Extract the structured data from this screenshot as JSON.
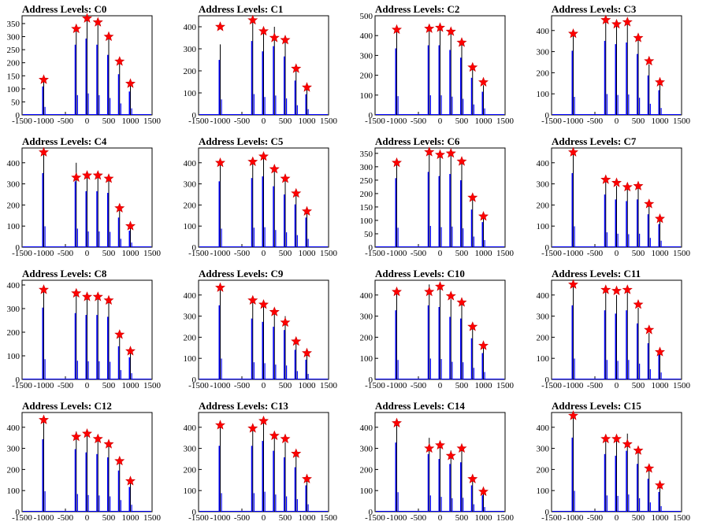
{
  "chart_data": [
    {
      "type": "histogram",
      "title": "Address Levels: C0",
      "xlim": [
        -1500,
        1500
      ],
      "ylim": [
        0,
        380
      ],
      "yticks": [
        0,
        50,
        100,
        150,
        200,
        250,
        300,
        350
      ],
      "xticks": [
        -1500,
        -1000,
        -500,
        0,
        500,
        1000,
        1500
      ],
      "peaks": [
        [
          -1000,
          140
        ],
        [
          -250,
          345
        ],
        [
          0,
          375
        ],
        [
          250,
          345
        ],
        [
          500,
          295
        ],
        [
          750,
          200
        ],
        [
          1000,
          115
        ]
      ],
      "markers": [
        [
          -1000,
          135
        ],
        [
          -250,
          330
        ],
        [
          0,
          370
        ],
        [
          250,
          355
        ],
        [
          500,
          300
        ],
        [
          750,
          205
        ],
        [
          1000,
          120
        ]
      ]
    },
    {
      "type": "histogram",
      "title": "Address Levels: C1",
      "xlim": [
        -1500,
        1500
      ],
      "ylim": [
        0,
        450
      ],
      "yticks": [
        0,
        100,
        200,
        300,
        400
      ],
      "xticks": [
        -1500,
        -1000,
        -500,
        0,
        500,
        1000,
        1500
      ],
      "peaks": [
        [
          -1000,
          320
        ],
        [
          -250,
          430
        ],
        [
          0,
          370
        ],
        [
          250,
          400
        ],
        [
          500,
          340
        ],
        [
          750,
          200
        ],
        [
          1000,
          120
        ]
      ],
      "markers": [
        [
          -1000,
          400
        ],
        [
          -250,
          430
        ],
        [
          0,
          380
        ],
        [
          250,
          350
        ],
        [
          500,
          340
        ],
        [
          750,
          210
        ],
        [
          1000,
          125
        ]
      ]
    },
    {
      "type": "histogram",
      "title": "Address Levels: C2",
      "xlim": [
        -1500,
        1500
      ],
      "ylim": [
        0,
        500
      ],
      "yticks": [
        0,
        100,
        200,
        300,
        400,
        500
      ],
      "xticks": [
        -1500,
        -1000,
        -500,
        0,
        500,
        1000,
        1500
      ],
      "peaks": [
        [
          -1000,
          430
        ],
        [
          -250,
          450
        ],
        [
          0,
          450
        ],
        [
          250,
          420
        ],
        [
          500,
          370
        ],
        [
          750,
          240
        ],
        [
          1000,
          150
        ]
      ],
      "markers": [
        [
          -1000,
          430
        ],
        [
          -250,
          435
        ],
        [
          0,
          440
        ],
        [
          250,
          420
        ],
        [
          500,
          365
        ],
        [
          750,
          240
        ],
        [
          1000,
          165
        ]
      ]
    },
    {
      "type": "histogram",
      "title": "Address Levels: C3",
      "xlim": [
        -1500,
        1500
      ],
      "ylim": [
        0,
        470
      ],
      "yticks": [
        0,
        100,
        200,
        300,
        400
      ],
      "xticks": [
        -1500,
        -1000,
        -500,
        0,
        500,
        1000,
        1500
      ],
      "peaks": [
        [
          -1000,
          390
        ],
        [
          -250,
          450
        ],
        [
          0,
          430
        ],
        [
          250,
          440
        ],
        [
          500,
          370
        ],
        [
          750,
          240
        ],
        [
          1000,
          150
        ]
      ],
      "markers": [
        [
          -1000,
          385
        ],
        [
          -250,
          450
        ],
        [
          0,
          430
        ],
        [
          250,
          440
        ],
        [
          500,
          365
        ],
        [
          750,
          255
        ],
        [
          1000,
          155
        ]
      ]
    },
    {
      "type": "histogram",
      "title": "Address Levels: C4",
      "xlim": [
        -1500,
        1500
      ],
      "ylim": [
        0,
        470
      ],
      "yticks": [
        0,
        100,
        200,
        300,
        400
      ],
      "xticks": [
        -1500,
        -1000,
        -500,
        0,
        500,
        1000,
        1500
      ],
      "peaks": [
        [
          -1000,
          450
        ],
        [
          -250,
          400
        ],
        [
          0,
          340
        ],
        [
          250,
          340
        ],
        [
          500,
          330
        ],
        [
          750,
          180
        ],
        [
          1000,
          100
        ]
      ],
      "markers": [
        [
          -1000,
          450
        ],
        [
          -250,
          330
        ],
        [
          0,
          340
        ],
        [
          250,
          340
        ],
        [
          500,
          325
        ],
        [
          750,
          185
        ],
        [
          1000,
          100
        ]
      ]
    },
    {
      "type": "histogram",
      "title": "Address Levels: C5",
      "xlim": [
        -1500,
        1500
      ],
      "ylim": [
        0,
        470
      ],
      "yticks": [
        0,
        100,
        200,
        300,
        400
      ],
      "xticks": [
        -1500,
        -1000,
        -500,
        0,
        500,
        1000,
        1500
      ],
      "peaks": [
        [
          -1000,
          400
        ],
        [
          -250,
          420
        ],
        [
          0,
          430
        ],
        [
          250,
          370
        ],
        [
          500,
          320
        ],
        [
          750,
          260
        ],
        [
          1000,
          180
        ]
      ],
      "markers": [
        [
          -1000,
          400
        ],
        [
          -250,
          405
        ],
        [
          0,
          430
        ],
        [
          250,
          370
        ],
        [
          500,
          325
        ],
        [
          750,
          255
        ],
        [
          1000,
          170
        ]
      ]
    },
    {
      "type": "histogram",
      "title": "Address Levels: C6",
      "xlim": [
        -1500,
        1500
      ],
      "ylim": [
        0,
        370
      ],
      "yticks": [
        0,
        50,
        100,
        150,
        200,
        250,
        300,
        350
      ],
      "xticks": [
        -1500,
        -1000,
        -500,
        0,
        500,
        1000,
        1500
      ],
      "peaks": [
        [
          -1000,
          330
        ],
        [
          -250,
          360
        ],
        [
          0,
          340
        ],
        [
          250,
          350
        ],
        [
          500,
          320
        ],
        [
          750,
          180
        ],
        [
          1000,
          120
        ]
      ],
      "markers": [
        [
          -1000,
          315
        ],
        [
          -250,
          355
        ],
        [
          0,
          345
        ],
        [
          250,
          350
        ],
        [
          500,
          320
        ],
        [
          750,
          185
        ],
        [
          1000,
          115
        ]
      ]
    },
    {
      "type": "histogram",
      "title": "Address Levels: C7",
      "xlim": [
        -1500,
        1500
      ],
      "ylim": [
        0,
        470
      ],
      "yticks": [
        0,
        100,
        200,
        300,
        400
      ],
      "xticks": [
        -1500,
        -1000,
        -500,
        0,
        500,
        1000,
        1500
      ],
      "peaks": [
        [
          -1000,
          450
        ],
        [
          -250,
          320
        ],
        [
          0,
          290
        ],
        [
          250,
          280
        ],
        [
          500,
          290
        ],
        [
          750,
          200
        ],
        [
          1000,
          140
        ]
      ],
      "markers": [
        [
          -1000,
          450
        ],
        [
          -250,
          320
        ],
        [
          0,
          305
        ],
        [
          250,
          285
        ],
        [
          500,
          290
        ],
        [
          750,
          205
        ],
        [
          1000,
          135
        ]
      ]
    },
    {
      "type": "histogram",
      "title": "Address Levels: C8",
      "xlim": [
        -1500,
        1500
      ],
      "ylim": [
        0,
        420
      ],
      "yticks": [
        0,
        100,
        200,
        300,
        400
      ],
      "xticks": [
        -1500,
        -1000,
        -500,
        0,
        500,
        1000,
        1500
      ],
      "peaks": [
        [
          -1000,
          390
        ],
        [
          -250,
          360
        ],
        [
          0,
          350
        ],
        [
          250,
          350
        ],
        [
          500,
          340
        ],
        [
          750,
          180
        ],
        [
          1000,
          120
        ]
      ],
      "markers": [
        [
          -1000,
          380
        ],
        [
          -250,
          365
        ],
        [
          0,
          350
        ],
        [
          250,
          350
        ],
        [
          500,
          335
        ],
        [
          750,
          190
        ],
        [
          1000,
          120
        ]
      ]
    },
    {
      "type": "histogram",
      "title": "Address Levels: C9",
      "xlim": [
        -1500,
        1500
      ],
      "ylim": [
        0,
        470
      ],
      "yticks": [
        0,
        100,
        200,
        300,
        400
      ],
      "xticks": [
        -1500,
        -1000,
        -500,
        0,
        500,
        1000,
        1500
      ],
      "peaks": [
        [
          -1000,
          450
        ],
        [
          -250,
          370
        ],
        [
          0,
          350
        ],
        [
          250,
          320
        ],
        [
          500,
          300
        ],
        [
          750,
          180
        ],
        [
          1000,
          120
        ]
      ],
      "markers": [
        [
          -1000,
          435
        ],
        [
          -250,
          375
        ],
        [
          0,
          355
        ],
        [
          250,
          320
        ],
        [
          500,
          270
        ],
        [
          750,
          180
        ],
        [
          1000,
          125
        ]
      ]
    },
    {
      "type": "histogram",
      "title": "Address Levels: C10",
      "xlim": [
        -1500,
        1500
      ],
      "ylim": [
        0,
        470
      ],
      "yticks": [
        0,
        100,
        200,
        300,
        400
      ],
      "xticks": [
        -1500,
        -1000,
        -500,
        0,
        500,
        1000,
        1500
      ],
      "peaks": [
        [
          -1000,
          420
        ],
        [
          -250,
          450
        ],
        [
          0,
          440
        ],
        [
          250,
          380
        ],
        [
          500,
          370
        ],
        [
          750,
          250
        ],
        [
          1000,
          160
        ]
      ],
      "markers": [
        [
          -1000,
          415
        ],
        [
          -250,
          415
        ],
        [
          0,
          440
        ],
        [
          250,
          395
        ],
        [
          500,
          365
        ],
        [
          750,
          250
        ],
        [
          1000,
          160
        ]
      ]
    },
    {
      "type": "histogram",
      "title": "Address Levels: C11",
      "xlim": [
        -1500,
        1500
      ],
      "ylim": [
        0,
        470
      ],
      "yticks": [
        0,
        100,
        200,
        300,
        400
      ],
      "xticks": [
        -1500,
        -1000,
        -500,
        0,
        500,
        1000,
        1500
      ],
      "peaks": [
        [
          -1000,
          450
        ],
        [
          -250,
          420
        ],
        [
          0,
          400
        ],
        [
          250,
          420
        ],
        [
          500,
          340
        ],
        [
          750,
          220
        ],
        [
          1000,
          150
        ]
      ],
      "markers": [
        [
          -1000,
          450
        ],
        [
          -250,
          425
        ],
        [
          0,
          420
        ],
        [
          250,
          425
        ],
        [
          500,
          355
        ],
        [
          750,
          235
        ],
        [
          1000,
          130
        ]
      ]
    },
    {
      "type": "histogram",
      "title": "Address Levels: C12",
      "xlim": [
        -1500,
        1500
      ],
      "ylim": [
        0,
        470
      ],
      "yticks": [
        0,
        100,
        200,
        300,
        400
      ],
      "xticks": [
        -1500,
        -1000,
        -500,
        0,
        500,
        1000,
        1500
      ],
      "peaks": [
        [
          -1000,
          440
        ],
        [
          -250,
          380
        ],
        [
          0,
          360
        ],
        [
          250,
          350
        ],
        [
          500,
          330
        ],
        [
          750,
          250
        ],
        [
          1000,
          150
        ]
      ],
      "markers": [
        [
          -1000,
          435
        ],
        [
          -250,
          355
        ],
        [
          0,
          370
        ],
        [
          250,
          345
        ],
        [
          500,
          320
        ],
        [
          750,
          240
        ],
        [
          1000,
          145
        ]
      ]
    },
    {
      "type": "histogram",
      "title": "Address Levels: C13",
      "xlim": [
        -1500,
        1500
      ],
      "ylim": [
        0,
        470
      ],
      "yticks": [
        0,
        100,
        200,
        300,
        400
      ],
      "xticks": [
        -1500,
        -1000,
        -500,
        0,
        500,
        1000,
        1500
      ],
      "peaks": [
        [
          -1000,
          400
        ],
        [
          -250,
          400
        ],
        [
          0,
          430
        ],
        [
          250,
          370
        ],
        [
          500,
          330
        ],
        [
          750,
          270
        ],
        [
          1000,
          160
        ]
      ],
      "markers": [
        [
          -1000,
          410
        ],
        [
          -250,
          395
        ],
        [
          0,
          430
        ],
        [
          250,
          360
        ],
        [
          500,
          345
        ],
        [
          750,
          275
        ],
        [
          1000,
          155
        ]
      ]
    },
    {
      "type": "histogram",
      "title": "Address Levels: C14",
      "xlim": [
        -1500,
        1500
      ],
      "ylim": [
        0,
        470
      ],
      "yticks": [
        0,
        100,
        200,
        300,
        400
      ],
      "xticks": [
        -1500,
        -1000,
        -500,
        0,
        500,
        1000,
        1500
      ],
      "peaks": [
        [
          -1000,
          420
        ],
        [
          -250,
          350
        ],
        [
          0,
          320
        ],
        [
          250,
          290
        ],
        [
          500,
          300
        ],
        [
          750,
          160
        ],
        [
          1000,
          100
        ]
      ],
      "markers": [
        [
          -1000,
          420
        ],
        [
          -250,
          300
        ],
        [
          0,
          315
        ],
        [
          250,
          265
        ],
        [
          500,
          300
        ],
        [
          750,
          155
        ],
        [
          1000,
          95
        ]
      ]
    },
    {
      "type": "histogram",
      "title": "Address Levels: C15",
      "xlim": [
        -1500,
        1500
      ],
      "ylim": [
        0,
        470
      ],
      "yticks": [
        0,
        100,
        200,
        300,
        400
      ],
      "xticks": [
        -1500,
        -1000,
        -500,
        0,
        500,
        1000,
        1500
      ],
      "peaks": [
        [
          -1000,
          450
        ],
        [
          -250,
          350
        ],
        [
          0,
          340
        ],
        [
          250,
          370
        ],
        [
          500,
          290
        ],
        [
          750,
          200
        ],
        [
          1000,
          120
        ]
      ],
      "markers": [
        [
          -1000,
          455
        ],
        [
          -250,
          345
        ],
        [
          0,
          345
        ],
        [
          250,
          320
        ],
        [
          500,
          290
        ],
        [
          750,
          205
        ],
        [
          1000,
          125
        ]
      ]
    }
  ],
  "colors": {
    "line": "#0000ff",
    "spike": "#000000",
    "marker_fill": "#ff0000",
    "marker_stroke": "#cc0000",
    "axis": "#000000"
  }
}
